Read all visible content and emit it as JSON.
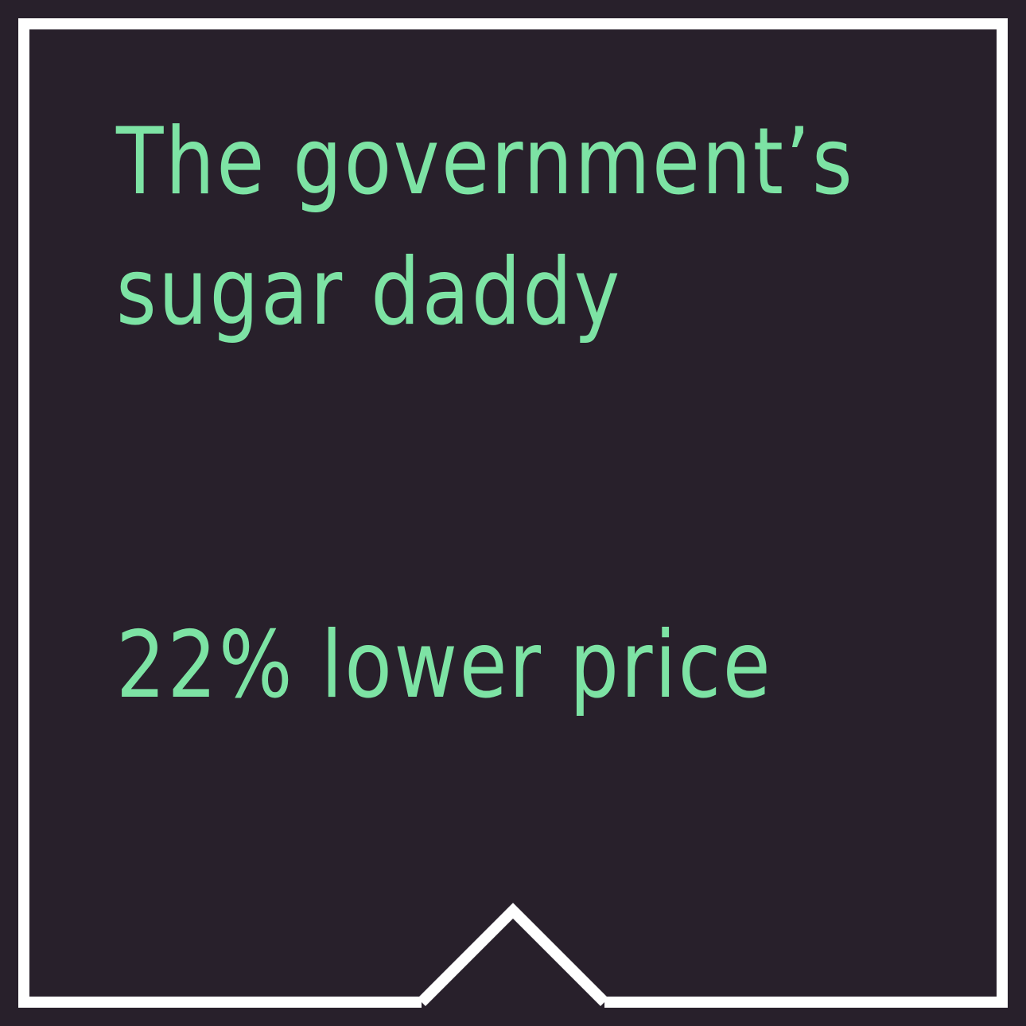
{
  "card": {
    "headline_line1": "The government’s",
    "headline_line2": "sugar daddy",
    "stat": "22% lower price"
  },
  "colors": {
    "background": "#28202b",
    "text": "#7de3a4",
    "frame": "#ffffff"
  },
  "icons": {
    "bottom_marker": "up-chevron-notch-icon"
  }
}
